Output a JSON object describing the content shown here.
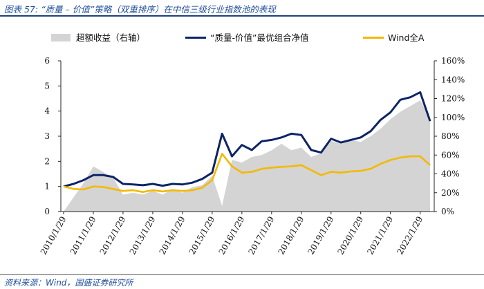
{
  "header": {
    "title": "图表 57: “质量 – 价值”策略（双重排序）在中信三级行业指数池的表现",
    "source": "资料来源：Wind，国盛证券研究所"
  },
  "chart_data": {
    "type": "line",
    "x": [
      "2010/1/29",
      "2010/5/29",
      "2010/9/29",
      "2011/1/29",
      "2011/5/29",
      "2011/9/29",
      "2012/1/29",
      "2012/5/29",
      "2012/9/29",
      "2013/1/29",
      "2013/5/29",
      "2013/9/29",
      "2014/1/29",
      "2014/5/29",
      "2014/9/29",
      "2015/1/29",
      "2015/5/29",
      "2015/9/29",
      "2016/1/29",
      "2016/5/29",
      "2016/9/29",
      "2017/1/29",
      "2017/5/29",
      "2017/9/29",
      "2018/1/29",
      "2018/5/29",
      "2018/9/29",
      "2019/1/29",
      "2019/5/29",
      "2019/9/29",
      "2020/1/29",
      "2020/5/29",
      "2020/9/29",
      "2021/1/29",
      "2021/5/29",
      "2021/9/29",
      "2022/1/29",
      "2022/5/29"
    ],
    "x_tick_labels": [
      "2010/1/29",
      "2011/1/29",
      "2012/1/29",
      "2013/1/29",
      "2014/1/29",
      "2015/1/29",
      "2016/1/29",
      "2017/1/29",
      "2018/1/29",
      "2019/1/29",
      "2020/1/29",
      "2021/1/29",
      "2022/1/29"
    ],
    "y_left": {
      "lim": [
        0,
        6
      ],
      "ticks": [
        "0",
        "1",
        "2",
        "3",
        "4",
        "5",
        "6"
      ]
    },
    "y_right": {
      "lim": [
        0,
        160
      ],
      "ticks": [
        "0%",
        "20%",
        "40%",
        "60%",
        "80%",
        "100%",
        "120%",
        "140%",
        "160%"
      ]
    },
    "series": [
      {
        "name": "超额收益（右轴）",
        "type": "area",
        "axis": "right",
        "color": "#d4d4d4",
        "values": [
          0,
          15,
          30,
          48,
          42,
          36,
          18,
          20,
          18,
          22,
          18,
          24,
          20,
          26,
          28,
          38,
          6,
          55,
          52,
          58,
          60,
          65,
          72,
          65,
          68,
          58,
          62,
          75,
          72,
          76,
          74,
          80,
          88,
          98,
          106,
          112,
          118,
          100
        ]
      },
      {
        "name": "“质量-价值”最优组合净值",
        "type": "line",
        "axis": "left",
        "color": "#0d2466",
        "values": [
          1.0,
          1.1,
          1.25,
          1.45,
          1.45,
          1.38,
          1.1,
          1.08,
          1.05,
          1.1,
          1.03,
          1.1,
          1.08,
          1.15,
          1.3,
          1.55,
          3.1,
          2.2,
          2.65,
          2.45,
          2.8,
          2.85,
          2.95,
          3.1,
          3.05,
          2.45,
          2.35,
          2.9,
          2.75,
          2.85,
          2.95,
          3.2,
          3.65,
          3.95,
          4.45,
          4.55,
          4.75,
          3.6
        ]
      },
      {
        "name": "Wind全A",
        "type": "line",
        "axis": "left",
        "color": "#f5b800",
        "values": [
          1.0,
          0.9,
          0.88,
          1.0,
          0.98,
          0.9,
          0.82,
          0.85,
          0.78,
          0.85,
          0.8,
          0.85,
          0.82,
          0.85,
          0.95,
          1.25,
          2.3,
          1.8,
          1.55,
          1.58,
          1.7,
          1.75,
          1.78,
          1.8,
          1.85,
          1.65,
          1.45,
          1.58,
          1.55,
          1.6,
          1.62,
          1.7,
          1.9,
          2.05,
          2.15,
          2.2,
          2.2,
          1.85
        ]
      }
    ],
    "legend_position": "top",
    "grid": false
  }
}
